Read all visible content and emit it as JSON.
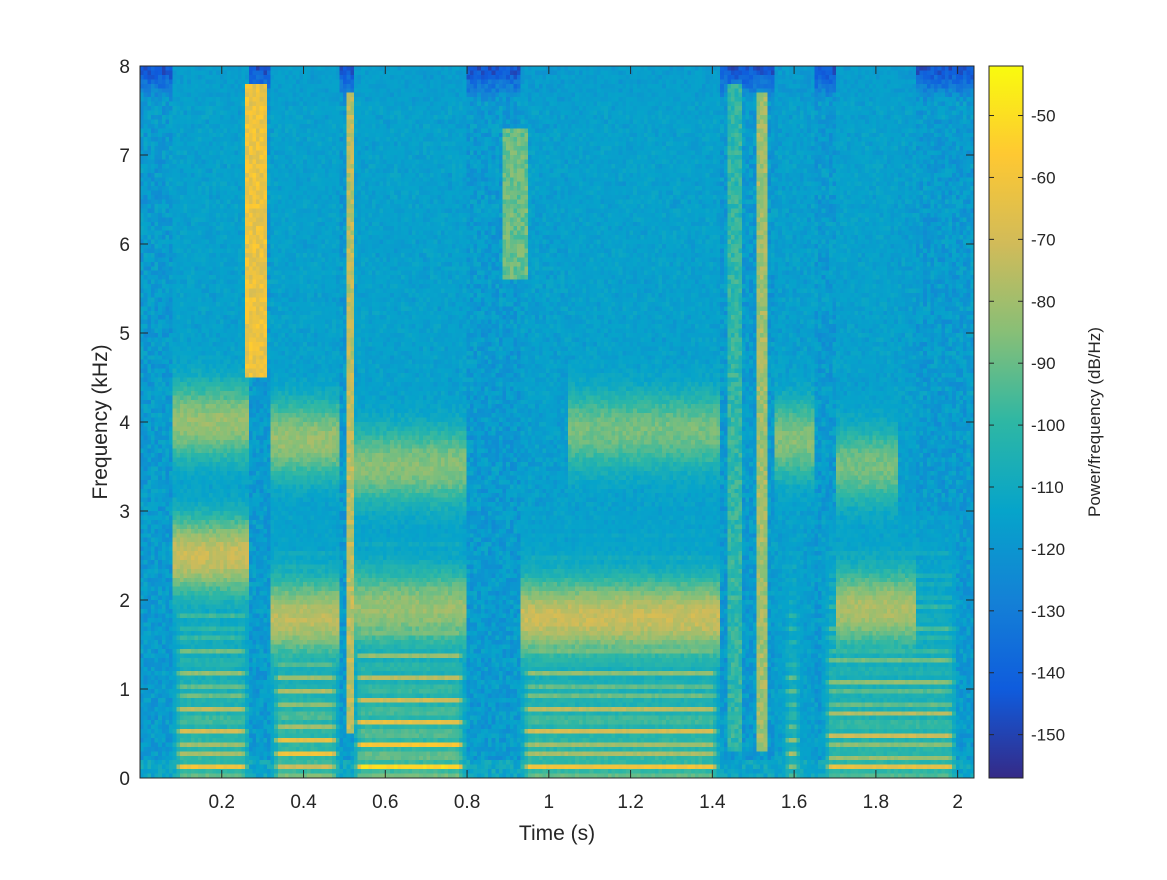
{
  "chart_data": {
    "type": "heatmap",
    "xlabel": "Time (s)",
    "ylabel": "Frequency (kHz)",
    "xlim": [
      0,
      2.04
    ],
    "ylim": [
      0,
      8
    ],
    "x_ticks": [
      0.2,
      0.4,
      0.6,
      0.8,
      1,
      1.2,
      1.4,
      1.6,
      1.8,
      2
    ],
    "x_tick_labels": [
      "0.2",
      "0.4",
      "0.6",
      "0.8",
      "1",
      "1.2",
      "1.4",
      "1.6",
      "1.8",
      "2"
    ],
    "y_ticks": [
      0,
      1,
      2,
      3,
      4,
      5,
      6,
      7,
      8
    ],
    "y_tick_labels": [
      "0",
      "1",
      "2",
      "3",
      "4",
      "5",
      "6",
      "7",
      "8"
    ],
    "colorbar": {
      "label": "Power/frequency (dB/Hz)",
      "colormap": "parula",
      "range": [
        -157,
        -42
      ],
      "ticks": [
        -50,
        -60,
        -70,
        -80,
        -90,
        -100,
        -110,
        -120,
        -130,
        -140,
        -150
      ],
      "tick_labels": [
        "-50",
        "-60",
        "-70",
        "-80",
        "-90",
        "-100",
        "-110",
        "-120",
        "-130",
        "-140",
        "-150"
      ],
      "colors": [
        "#352a87",
        "#0f5cdd",
        "#1481d6",
        "#06a4ca",
        "#2eb7a4",
        "#87bf77",
        "#d1bb59",
        "#fec832",
        "#f9fb0e"
      ]
    },
    "background_level_db": -118,
    "top_band_level_db": -145,
    "voiced_segments": [
      {
        "t": [
          0.08,
          0.27
        ],
        "f0": 0.13,
        "peak_db": -55
      },
      {
        "t": [
          0.32,
          0.49
        ],
        "f0": 0.14,
        "peak_db": -52
      },
      {
        "t": [
          0.52,
          0.8
        ],
        "f0": 0.125,
        "peak_db": -48
      },
      {
        "t": [
          0.93,
          1.42
        ],
        "f0": 0.13,
        "peak_db": -55
      },
      {
        "t": [
          1.57,
          1.62
        ],
        "f0": 0.14,
        "peak_db": -70
      },
      {
        "t": [
          1.67,
          2.0
        ],
        "f0": 0.12,
        "peak_db": -58
      }
    ],
    "fricatives": [
      {
        "t": [
          0.26,
          0.31
        ],
        "f": [
          4.5,
          7.8
        ],
        "peak_db": -62
      },
      {
        "t": [
          0.505,
          0.525
        ],
        "f": [
          0.5,
          7.7
        ],
        "peak_db": -75
      },
      {
        "t": [
          0.89,
          0.95
        ],
        "f": [
          5.6,
          7.3
        ],
        "peak_db": -90
      },
      {
        "t": [
          1.44,
          1.47
        ],
        "f": [
          0.3,
          7.8
        ],
        "peak_db": -100
      },
      {
        "t": [
          1.505,
          1.53
        ],
        "f": [
          0.3,
          7.7
        ],
        "peak_db": -80
      }
    ],
    "formant_bands": [
      {
        "t": [
          0.08,
          0.27
        ],
        "f": 2.5,
        "level_db": -72
      },
      {
        "t": [
          0.08,
          0.27
        ],
        "f": 4.0,
        "level_db": -82
      },
      {
        "t": [
          0.32,
          0.49
        ],
        "f": 1.8,
        "level_db": -75
      },
      {
        "t": [
          0.32,
          0.49
        ],
        "f": 3.8,
        "level_db": -82
      },
      {
        "t": [
          0.52,
          0.8
        ],
        "f": 1.9,
        "level_db": -82
      },
      {
        "t": [
          0.52,
          0.8
        ],
        "f": 3.5,
        "level_db": -85
      },
      {
        "t": [
          0.93,
          1.42
        ],
        "f": 1.8,
        "level_db": -72
      },
      {
        "t": [
          1.05,
          1.42
        ],
        "f": 3.9,
        "level_db": -88
      },
      {
        "t": [
          1.55,
          1.65
        ],
        "f": 3.8,
        "level_db": -85
      },
      {
        "t": [
          1.7,
          1.9
        ],
        "f": 1.9,
        "level_db": -78
      },
      {
        "t": [
          1.7,
          1.85
        ],
        "f": 3.5,
        "level_db": -88
      }
    ]
  }
}
